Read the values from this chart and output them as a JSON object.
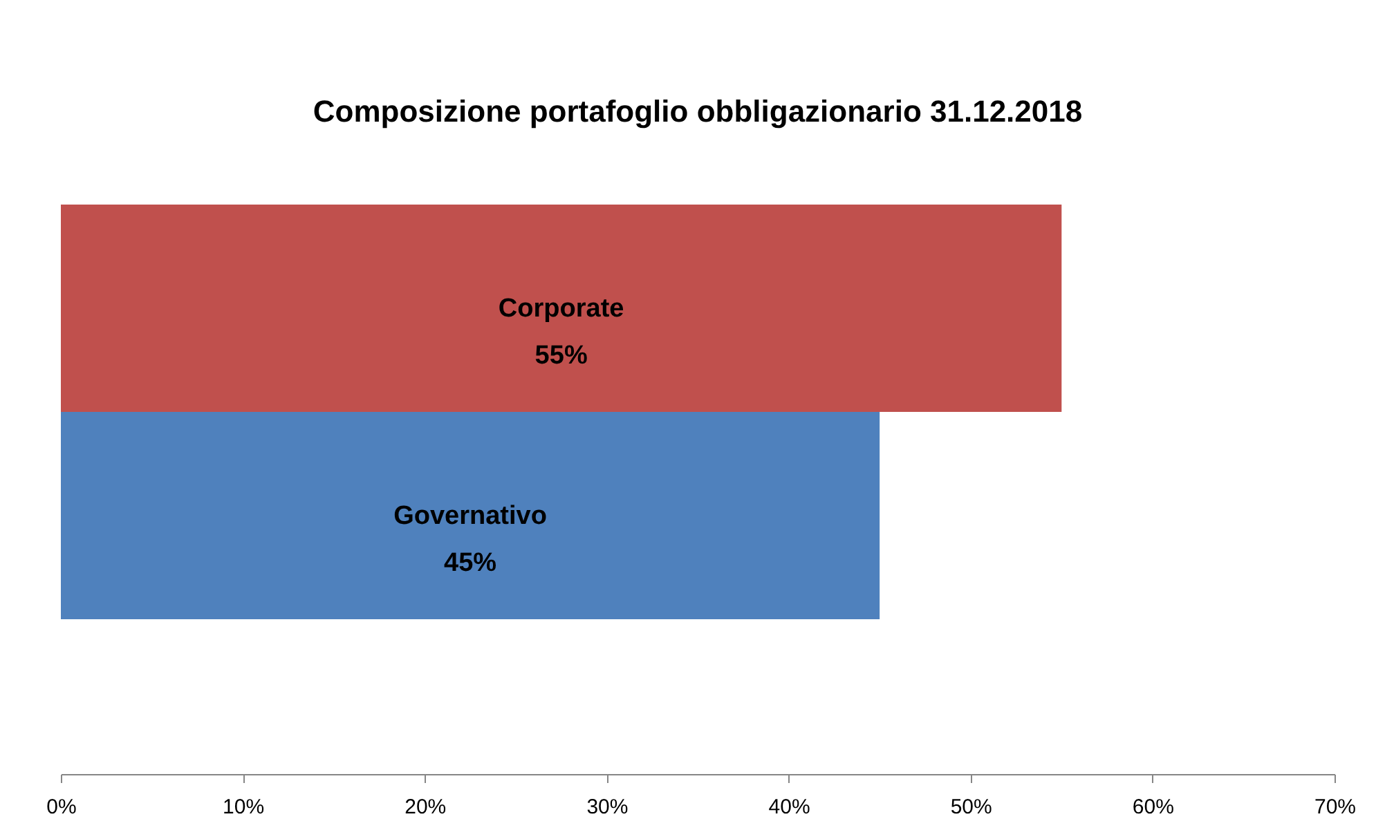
{
  "chart_data": {
    "type": "bar",
    "orientation": "horizontal",
    "title": "Composizione portafoglio obbligazionario 31.12.2018",
    "categories": [
      "Corporate",
      "Governativo"
    ],
    "values": [
      55,
      45
    ],
    "colors": [
      "#c0504d",
      "#4f81bd"
    ],
    "value_labels": [
      "55%",
      "45%"
    ],
    "xlim": [
      0,
      70
    ],
    "xticks": [
      {
        "value": 0,
        "label": "0%"
      },
      {
        "value": 10,
        "label": "10%"
      },
      {
        "value": 20,
        "label": "20%"
      },
      {
        "value": 30,
        "label": "30%"
      },
      {
        "value": 40,
        "label": "40%"
      },
      {
        "value": 50,
        "label": "50%"
      },
      {
        "value": 60,
        "label": "60%"
      },
      {
        "value": 70,
        "label": "70%"
      }
    ],
    "tick_labels": "x",
    "grid": false
  }
}
